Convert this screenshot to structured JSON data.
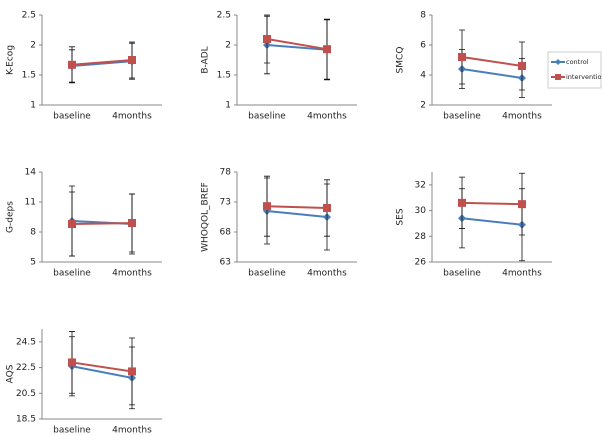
{
  "chart_data": [
    {
      "type": "line",
      "ylabel": "K-Ecog",
      "categories": [
        "baseline",
        "4months"
      ],
      "ylim": [
        1,
        2.5
      ],
      "yticks": [
        1,
        1.5,
        2,
        2.5
      ],
      "series": [
        {
          "name": "control",
          "color": "#4a7ebb",
          "values": [
            1.65,
            1.73
          ],
          "errors": [
            0.27,
            0.3
          ]
        },
        {
          "name": "intervention",
          "color": "#c0504d",
          "values": [
            1.67,
            1.75
          ],
          "errors": [
            0.3,
            0.3
          ]
        }
      ]
    },
    {
      "type": "line",
      "ylabel": "B-ADL",
      "categories": [
        "baseline",
        "4months"
      ],
      "ylim": [
        1,
        2.5
      ],
      "yticks": [
        1,
        1.5,
        2,
        2.5
      ],
      "series": [
        {
          "name": "control",
          "color": "#4a7ebb",
          "values": [
            2.0,
            1.92
          ],
          "errors": [
            0.48,
            0.5
          ]
        },
        {
          "name": "intervention",
          "color": "#c0504d",
          "values": [
            2.1,
            1.93
          ],
          "errors": [
            0.4,
            0.5
          ]
        }
      ]
    },
    {
      "type": "line",
      "ylabel": "SMCQ",
      "categories": [
        "baseline",
        "4months"
      ],
      "ylim": [
        2,
        8
      ],
      "yticks": [
        2,
        4,
        6,
        8
      ],
      "series": [
        {
          "name": "control",
          "color": "#4a7ebb",
          "values": [
            4.4,
            3.8
          ],
          "errors": [
            1.3,
            1.3
          ]
        },
        {
          "name": "intervention",
          "color": "#c0504d",
          "values": [
            5.2,
            4.6
          ],
          "errors": [
            1.8,
            1.6
          ]
        }
      ]
    },
    {
      "type": "line",
      "ylabel": "G-deps",
      "categories": [
        "baseline",
        "4months"
      ],
      "ylim": [
        5,
        14
      ],
      "yticks": [
        5,
        8,
        11,
        14
      ],
      "series": [
        {
          "name": "control",
          "color": "#4a7ebb",
          "values": [
            9.1,
            8.8
          ],
          "errors": [
            3.5,
            3.0
          ]
        },
        {
          "name": "intervention",
          "color": "#c0504d",
          "values": [
            8.8,
            8.9
          ],
          "errors": [
            3.2,
            2.9
          ]
        }
      ]
    },
    {
      "type": "line",
      "ylabel": "WHOQOL_BREF",
      "categories": [
        "baseline",
        "4months"
      ],
      "ylim": [
        63,
        78
      ],
      "yticks": [
        63,
        68,
        73,
        78
      ],
      "series": [
        {
          "name": "control",
          "color": "#4a7ebb",
          "values": [
            71.5,
            70.5
          ],
          "errors": [
            5.5,
            5.5
          ]
        },
        {
          "name": "intervention",
          "color": "#c0504d",
          "values": [
            72.3,
            72.0
          ],
          "errors": [
            5.0,
            4.7
          ]
        }
      ]
    },
    {
      "type": "line",
      "ylabel": "SES",
      "categories": [
        "baseline",
        "4months"
      ],
      "ylim": [
        26,
        33
      ],
      "yticks": [
        26,
        28,
        30,
        32
      ],
      "series": [
        {
          "name": "control",
          "color": "#4a7ebb",
          "values": [
            29.4,
            28.9
          ],
          "errors": [
            2.3,
            2.8
          ]
        },
        {
          "name": "intervention",
          "color": "#c0504d",
          "values": [
            30.6,
            30.5
          ],
          "errors": [
            2.0,
            2.4
          ]
        }
      ]
    },
    {
      "type": "line",
      "ylabel": "AQS",
      "categories": [
        "baseline",
        "4months"
      ],
      "ylim": [
        18.5,
        25.5
      ],
      "yticks": [
        18.5,
        20.5,
        22.5,
        24.5
      ],
      "series": [
        {
          "name": "control",
          "color": "#4a7ebb",
          "values": [
            22.6,
            21.7
          ],
          "errors": [
            2.3,
            2.4
          ]
        },
        {
          "name": "intervention",
          "color": "#c0504d",
          "values": [
            22.9,
            22.2
          ],
          "errors": [
            2.4,
            2.6
          ]
        }
      ]
    }
  ]
}
